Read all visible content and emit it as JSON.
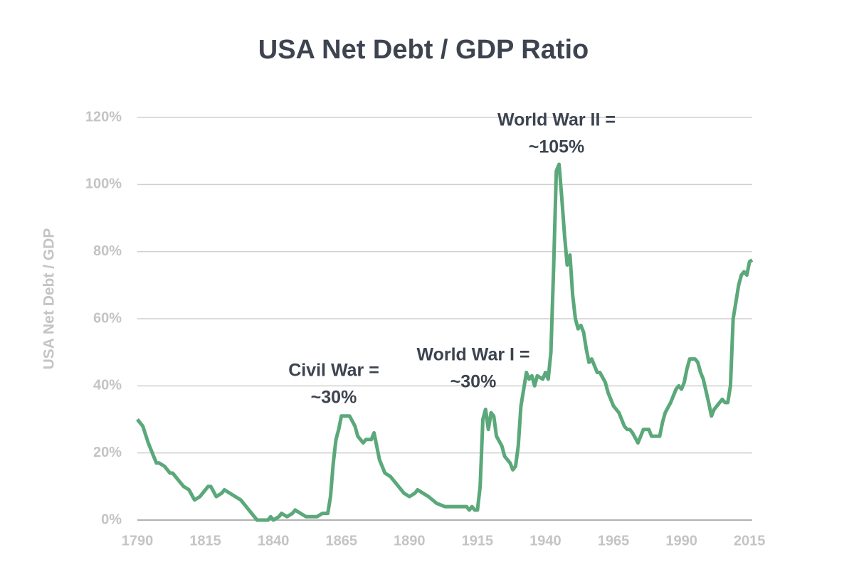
{
  "chart_data": {
    "type": "line",
    "title": "USA Net Debt / GDP Ratio",
    "y_label": "USA Net Debt / GDP",
    "annotations": [
      {
        "lines": [
          "Civil War =",
          "~30%"
        ]
      },
      {
        "lines": [
          "World War I =",
          "~30%"
        ]
      },
      {
        "lines": [
          "World War II =",
          "~105%"
        ]
      }
    ],
    "xlim": [
      1790,
      2016
    ],
    "xticks": [
      1790,
      1815,
      1840,
      1865,
      1890,
      1915,
      1940,
      1965,
      1990,
      2015
    ],
    "ylim": [
      0,
      120
    ],
    "yticks": [
      {
        "value": 0,
        "label": "0%"
      },
      {
        "value": 20,
        "label": "20%"
      },
      {
        "value": 40,
        "label": "40%"
      },
      {
        "value": 60,
        "label": "60%"
      },
      {
        "value": 80,
        "label": "80%"
      },
      {
        "value": 100,
        "label": "100%"
      },
      {
        "value": 120,
        "label": "120%"
      }
    ],
    "grid": true,
    "color": "#5ba87a",
    "x": [
      1790,
      1792,
      1794,
      1796,
      1797,
      1798,
      1800,
      1802,
      1803,
      1805,
      1807,
      1809,
      1811,
      1813,
      1816,
      1817,
      1819,
      1821,
      1822,
      1824,
      1826,
      1828,
      1830,
      1832,
      1834,
      1836,
      1838,
      1839,
      1840,
      1842,
      1843,
      1845,
      1847,
      1848,
      1850,
      1852,
      1856,
      1858,
      1860,
      1861,
      1862,
      1863,
      1864,
      1865,
      1867,
      1868,
      1870,
      1871,
      1873,
      1874,
      1876,
      1877,
      1878,
      1879,
      1881,
      1883,
      1886,
      1888,
      1890,
      1892,
      1893,
      1895,
      1897,
      1900,
      1903,
      1908,
      1911,
      1912,
      1913,
      1914,
      1915,
      1916,
      1917,
      1918,
      1919,
      1920,
      1921,
      1922,
      1924,
      1925,
      1927,
      1928,
      1929,
      1930,
      1931,
      1933,
      1934,
      1935,
      1936,
      1937,
      1939,
      1940,
      1941,
      1942,
      1943,
      1944,
      1945,
      1946,
      1947,
      1948,
      1949,
      1950,
      1951,
      1952,
      1953,
      1954,
      1955,
      1956,
      1957,
      1958,
      1959,
      1960,
      1962,
      1963,
      1965,
      1967,
      1969,
      1970,
      1971,
      1972,
      1974,
      1975,
      1976,
      1978,
      1979,
      1982,
      1983,
      1984,
      1986,
      1988,
      1989,
      1990,
      1991,
      1992,
      1993,
      1995,
      1996,
      1997,
      1998,
      2000,
      2001,
      2002,
      2004,
      2005,
      2006,
      2007,
      2008,
      2009,
      2010,
      2011,
      2012,
      2013,
      2014,
      2015,
      2016
    ],
    "values": [
      30,
      28,
      23,
      19,
      17,
      17,
      16,
      14,
      14,
      12,
      10,
      9,
      6,
      7,
      10,
      10,
      7,
      8,
      9,
      8,
      7,
      6,
      4,
      2,
      0,
      0,
      0,
      1,
      0,
      1,
      2,
      1,
      2,
      3,
      2,
      1,
      1,
      2,
      2,
      7,
      17,
      24,
      27,
      31,
      31,
      31,
      28,
      25,
      23,
      24,
      24,
      26,
      22,
      18,
      14,
      13,
      10,
      8,
      7,
      8,
      9,
      8,
      7,
      5,
      4,
      4,
      4,
      3,
      4,
      3,
      3,
      10,
      30,
      33,
      27,
      32,
      31,
      25,
      22,
      19,
      17,
      15,
      16,
      22,
      34,
      44,
      42,
      43,
      40,
      43,
      42,
      44,
      42,
      50,
      75,
      104,
      106,
      96,
      85,
      76,
      79,
      67,
      60,
      57,
      58,
      56,
      51,
      47,
      48,
      46,
      44,
      44,
      41,
      38,
      34,
      32,
      28,
      27,
      27,
      26,
      23,
      25,
      27,
      27,
      25,
      25,
      29,
      32,
      35,
      39,
      40,
      39,
      41,
      45,
      48,
      48,
      47,
      44,
      42,
      35,
      31,
      33,
      35,
      36,
      35,
      35,
      40,
      60,
      65,
      70,
      73,
      74,
      73,
      77,
      77.5
    ]
  }
}
